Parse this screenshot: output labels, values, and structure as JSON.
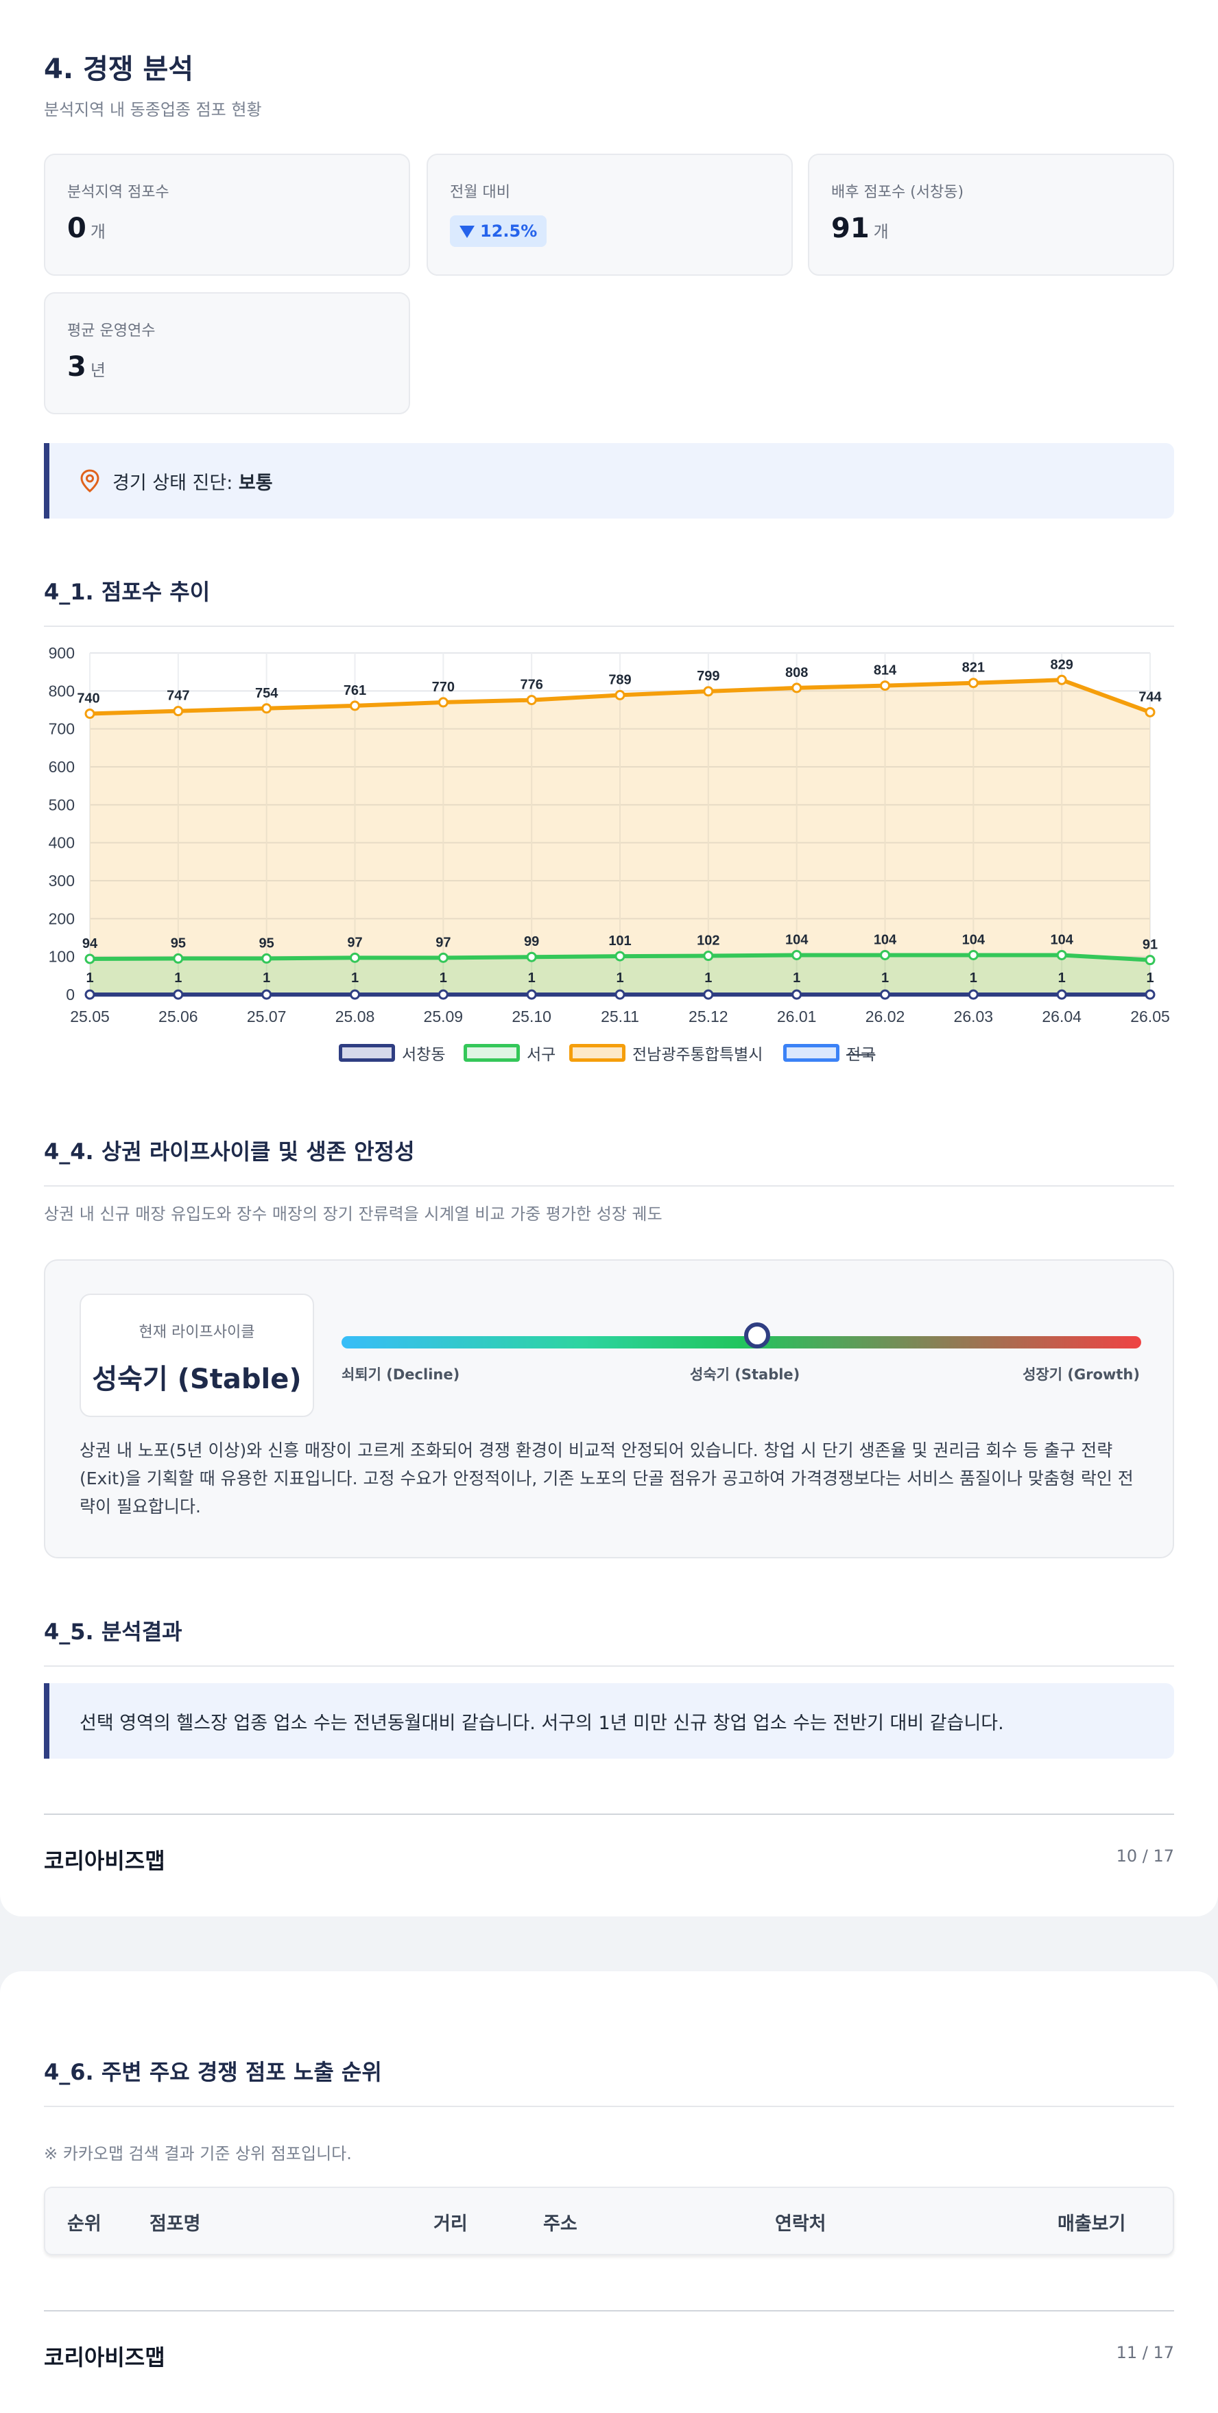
{
  "section": {
    "title": "4. 경쟁 분석",
    "subtitle": "분석지역 내 동종업종 점포 현황"
  },
  "stats": {
    "stores": {
      "label": "분석지역 점포수",
      "value": "0",
      "unit": "개"
    },
    "mom": {
      "label": "전월 대비",
      "value": "12.5%",
      "direction": "down"
    },
    "backstores": {
      "label": "배후 점포수 (서창동)",
      "value": "91",
      "unit": "개"
    },
    "years": {
      "label": "평균 운영연수",
      "value": "3",
      "unit": "년"
    }
  },
  "diagnosis": {
    "prefix": "경기 상태 진단: ",
    "value": "보통",
    "icon": "location-pin-icon"
  },
  "trend": {
    "title": "4_1. 점포수 추이"
  },
  "chart_data": {
    "type": "line",
    "categories": [
      "25.05",
      "25.06",
      "25.07",
      "25.08",
      "25.09",
      "25.10",
      "25.11",
      "25.12",
      "26.01",
      "26.02",
      "26.03",
      "26.04",
      "26.05"
    ],
    "ylim": [
      0,
      900
    ],
    "yticks": [
      0,
      100,
      200,
      300,
      400,
      500,
      600,
      700,
      800,
      900
    ],
    "grid": true,
    "legend_position": "bottom",
    "series": [
      {
        "name": "서창동",
        "color": "#2f3e82",
        "values": [
          0,
          0,
          0,
          0,
          0,
          0,
          0,
          0,
          0,
          0,
          0,
          0,
          0
        ]
      },
      {
        "name": "서구",
        "color": "#34c759",
        "values": [
          94,
          95,
          95,
          97,
          97,
          99,
          101,
          102,
          104,
          104,
          104,
          104,
          91
        ]
      },
      {
        "name": "전남광주통합특별시",
        "color": "#f59e0b",
        "values": [
          740,
          747,
          754,
          761,
          770,
          776,
          789,
          799,
          808,
          814,
          821,
          829,
          744
        ]
      },
      {
        "name": "전국",
        "color": "#3b82f6",
        "values": [
          1,
          1,
          1,
          1,
          1,
          1,
          1,
          1,
          1,
          1,
          1,
          1,
          1
        ],
        "hidden": true
      }
    ]
  },
  "lifecycle": {
    "title": "4_4. 상권 라이프사이클 및 생존 안정성",
    "desc": "상권 내 신규 매장 유입도와 장수 매장의 장기 잔류력을 시계열 비교 가중 평가한 성장 궤도",
    "current_label": "현재 라이프사이클",
    "current_value": "성숙기 (Stable)",
    "position": 0.52,
    "labels": {
      "left": "쇠퇴기 (Decline)",
      "mid": "성숙기 (Stable)",
      "right": "성장기 (Growth)"
    },
    "text": "상권 내 노포(5년 이상)와 신흥 매장이 고르게 조화되어 경쟁 환경이 비교적 안정되어 있습니다. 창업 시 단기 생존율 및 권리금 회수 등 출구 전략(Exit)을 기획할 때 유용한 지표입니다. 고정 수요가 안정적이나, 기존 노포의 단골 점유가 공고하여 가격경쟁보다는 서비스 품질이나 맞춤형 락인 전략이 필요합니다."
  },
  "result": {
    "title": "4_5. 분석결과",
    "text": "선택 영역의 헬스장 업종 업소 수는 전년동월대비 같습니다. 서구의 1년 미만 신규 창업 업소 수는 전반기 대비 같습니다."
  },
  "footer1": {
    "brand": "코리아비즈맵",
    "page": "10 / 17"
  },
  "ranking": {
    "title": "4_6. 주변 주요 경쟁 점포 노출 순위",
    "note": "※ 카카오맵 검색 결과 기준 상위 점포입니다.",
    "columns": [
      "순위",
      "점포명",
      "거리",
      "주소",
      "연락처",
      "매출보기"
    ]
  },
  "footer2": {
    "brand": "코리아비즈맵",
    "page": "11 / 17"
  }
}
